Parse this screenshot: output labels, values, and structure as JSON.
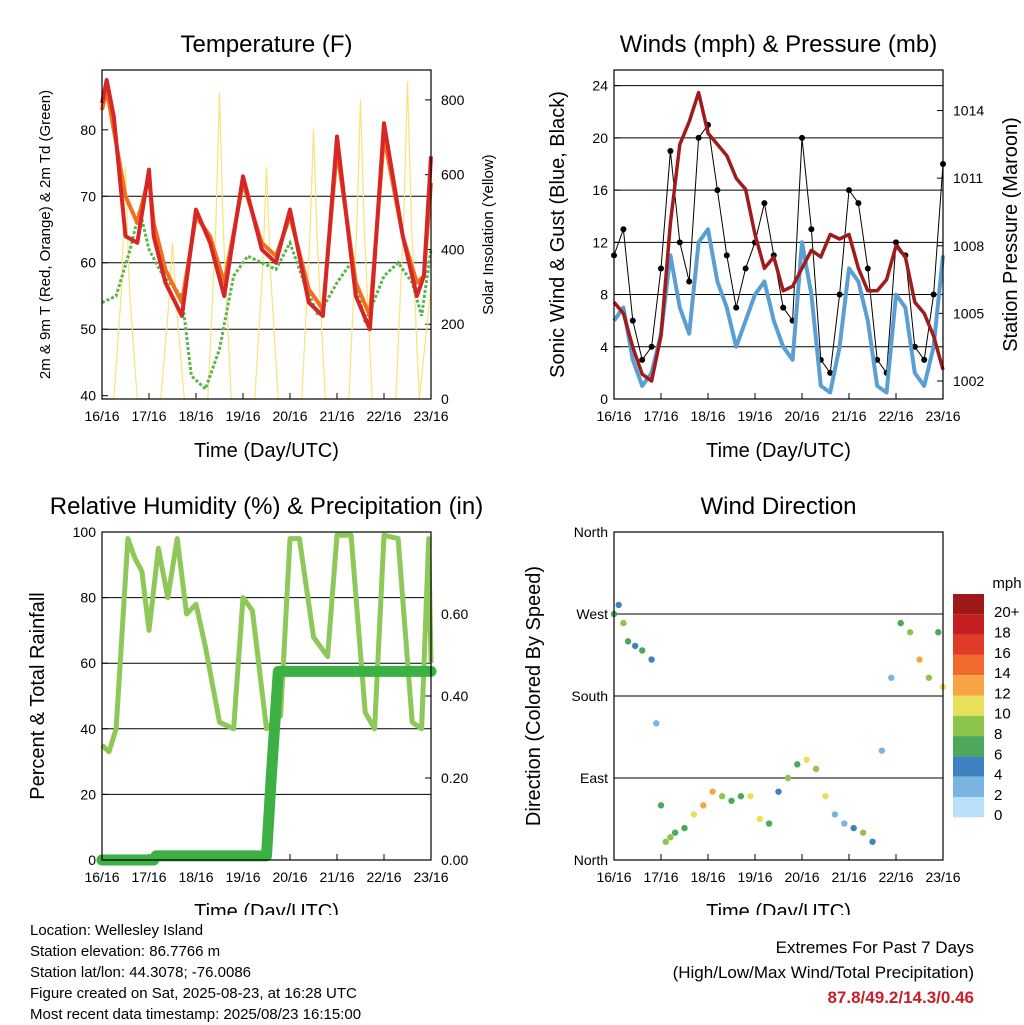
{
  "colors": {
    "temp_2m": "#d62626",
    "temp_9m": "#f07020",
    "dewpoint": "#5ab54a",
    "solar": "#f6e47a",
    "sonic": "#5a9fd4",
    "gust": "#000000",
    "pressure": "#a01c1c",
    "rh": "#8dc859",
    "precip": "#3cb043",
    "extremes": "#c8202a"
  },
  "chart_data": [
    {
      "id": "temperature",
      "type": "line",
      "title": "Temperature (F)",
      "xlabel": "Time (Day/UTC)",
      "ylabel": "2m & 9m T (Red, Orange) & 2m Td (Green)",
      "ylabel_right": "Solar Insolation (Yellow)",
      "x_ticks": [
        "16/16",
        "17/16",
        "18/16",
        "19/16",
        "20/16",
        "21/16",
        "22/16",
        "23/16"
      ],
      "xlim": [
        0,
        7
      ],
      "ylim": [
        39.5,
        89
      ],
      "y_ticks": [
        40,
        50,
        60,
        70,
        80
      ],
      "y2lim": [
        0,
        880
      ],
      "y2_ticks": [
        0,
        200,
        400,
        600,
        800
      ],
      "series": [
        {
          "key": "temp_2m",
          "x": [
            0,
            0.1,
            0.25,
            0.5,
            0.75,
            1.0,
            1.1,
            1.35,
            1.7,
            2.0,
            2.3,
            2.6,
            3.0,
            3.4,
            3.7,
            4.0,
            4.4,
            4.7,
            5.0,
            5.4,
            5.7,
            6.0,
            6.4,
            6.7,
            6.85,
            7.0
          ],
          "y": [
            84,
            87.5,
            82,
            64,
            63,
            74,
            64,
            57,
            52,
            68,
            63,
            55,
            73,
            62,
            60,
            68,
            54,
            52,
            79,
            55,
            50,
            81,
            64,
            55,
            58,
            76
          ]
        },
        {
          "key": "temp_9m",
          "x": [
            0,
            0.1,
            0.25,
            0.5,
            0.75,
            1.0,
            1.1,
            1.35,
            1.7,
            2.0,
            2.3,
            2.6,
            3.0,
            3.4,
            3.7,
            4.0,
            4.4,
            4.7,
            5.0,
            5.4,
            5.7,
            6.0,
            6.4,
            6.7,
            6.85,
            7.0
          ],
          "y": [
            83,
            86,
            80,
            70,
            66,
            73,
            66,
            59,
            54,
            67,
            64,
            57,
            72,
            63,
            61,
            67,
            56,
            53,
            77,
            57,
            52,
            79,
            64,
            57,
            58,
            72
          ]
        },
        {
          "key": "dewpoint",
          "x": [
            0,
            0.3,
            0.6,
            0.8,
            1.0,
            1.3,
            1.7,
            1.9,
            2.2,
            2.5,
            2.8,
            3.1,
            3.4,
            3.7,
            4.0,
            4.3,
            4.6,
            5.0,
            5.3,
            5.6,
            6.0,
            6.3,
            6.6,
            6.8,
            7.0
          ],
          "y": [
            54,
            55,
            62,
            68,
            62,
            58,
            55,
            43,
            41,
            47,
            58,
            61,
            60,
            59,
            63,
            57,
            52,
            57,
            60,
            51,
            58,
            60,
            57,
            52,
            62
          ]
        },
        {
          "key": "solar",
          "x": [
            0,
            0.25,
            0.42,
            0.5,
            0.58,
            0.75,
            1.25,
            1.42,
            1.5,
            1.58,
            1.75,
            2.25,
            2.42,
            2.5,
            2.58,
            2.75,
            3.25,
            3.42,
            3.5,
            3.58,
            3.75,
            4.25,
            4.42,
            4.5,
            4.58,
            4.75,
            5.25,
            5.42,
            5.5,
            5.58,
            5.75,
            6.25,
            6.42,
            6.5,
            6.58,
            6.75,
            7.0
          ],
          "y": [
            0,
            0,
            300,
            620,
            300,
            0,
            0,
            250,
            420,
            250,
            0,
            0,
            450,
            820,
            450,
            0,
            0,
            350,
            620,
            350,
            0,
            0,
            420,
            720,
            420,
            0,
            0,
            450,
            800,
            450,
            0,
            0,
            480,
            850,
            480,
            0,
            300
          ]
        }
      ]
    },
    {
      "id": "winds",
      "type": "scatter",
      "title": "Winds (mph) & Pressure (mb)",
      "xlabel": "Time (Day/UTC)",
      "ylabel": "Sonic Wind & Gust (Blue, Black)",
      "ylabel_right": "Station Pressure (Maroon)",
      "x_ticks": [
        "16/16",
        "17/16",
        "18/16",
        "19/16",
        "20/16",
        "21/16",
        "22/16",
        "23/16"
      ],
      "xlim": [
        0,
        7
      ],
      "ylim": [
        0,
        25.2
      ],
      "y_ticks": [
        0,
        4,
        8,
        12,
        16,
        20,
        24
      ],
      "y2lim": [
        1001.2,
        1015.8
      ],
      "y2_ticks": [
        1002,
        1005,
        1008,
        1011,
        1014
      ],
      "series": [
        {
          "key": "gust",
          "x": [
            0,
            0.2,
            0.4,
            0.6,
            0.8,
            1.0,
            1.2,
            1.4,
            1.6,
            1.8,
            2.0,
            2.2,
            2.4,
            2.6,
            2.8,
            3.0,
            3.2,
            3.4,
            3.6,
            3.8,
            4.0,
            4.2,
            4.4,
            4.6,
            4.8,
            5.0,
            5.2,
            5.4,
            5.6,
            5.8,
            6.0,
            6.2,
            6.4,
            6.6,
            6.8,
            7.0
          ],
          "y": [
            11,
            13,
            6,
            3,
            4,
            10,
            19,
            12,
            9,
            20,
            21,
            16,
            11,
            7,
            10,
            12,
            15,
            11,
            7,
            6,
            20,
            13,
            3,
            2,
            8,
            16,
            15,
            10,
            3,
            2,
            12,
            11,
            4,
            3,
            8,
            18
          ]
        },
        {
          "key": "sonic",
          "x": [
            0,
            0.2,
            0.4,
            0.6,
            0.8,
            1.0,
            1.2,
            1.4,
            1.6,
            1.8,
            2.0,
            2.2,
            2.4,
            2.6,
            2.8,
            3.0,
            3.2,
            3.4,
            3.6,
            3.8,
            4.0,
            4.2,
            4.4,
            4.6,
            4.8,
            5.0,
            5.2,
            5.4,
            5.6,
            5.8,
            6.0,
            6.2,
            6.4,
            6.6,
            6.8,
            7.0
          ],
          "y": [
            6,
            7,
            3,
            1,
            2,
            5,
            11,
            7,
            5,
            12,
            13,
            9,
            7,
            4,
            6,
            8,
            9,
            6,
            4,
            3,
            12,
            8,
            1,
            0.5,
            4,
            10,
            9,
            6,
            1,
            0.5,
            8,
            7,
            2,
            1,
            4,
            11
          ]
        },
        {
          "key": "pressure",
          "x": [
            0,
            0.2,
            0.4,
            0.6,
            0.8,
            1.0,
            1.2,
            1.4,
            1.6,
            1.8,
            2.0,
            2.2,
            2.4,
            2.6,
            2.8,
            3.0,
            3.2,
            3.4,
            3.6,
            3.8,
            4.0,
            4.2,
            4.4,
            4.6,
            4.8,
            5.0,
            5.2,
            5.4,
            5.6,
            5.8,
            6.0,
            6.2,
            6.4,
            6.6,
            6.8,
            7.0
          ],
          "y": [
            1005.5,
            1005,
            1003.5,
            1002.3,
            1002.0,
            1004,
            1009,
            1012.5,
            1013.5,
            1014.8,
            1013,
            1012.5,
            1012,
            1011,
            1010.5,
            1008.5,
            1007,
            1007.5,
            1006,
            1006.2,
            1007.0,
            1007.8,
            1007.5,
            1008.5,
            1008.3,
            1008.5,
            1007,
            1006,
            1006,
            1006.5,
            1008,
            1007.5,
            1005.5,
            1005,
            1004,
            1002.5
          ]
        }
      ]
    },
    {
      "id": "humidity",
      "type": "line",
      "title": "Relative Humidity (%) & Precipitation (in)",
      "xlabel": "Time (Day/UTC)",
      "ylabel": "Percent & Total Rainfall",
      "x_ticks": [
        "16/16",
        "17/16",
        "18/16",
        "19/16",
        "20/16",
        "21/16",
        "22/16",
        "23/16"
      ],
      "xlim": [
        0,
        7
      ],
      "ylim": [
        0,
        100
      ],
      "y_ticks": [
        0,
        20,
        40,
        60,
        80,
        100
      ],
      "y2lim": [
        0,
        0.8
      ],
      "y2_ticks": [
        "0.00",
        "0.20",
        "0.40",
        "0.60"
      ],
      "series": [
        {
          "key": "rh",
          "x": [
            0,
            0.15,
            0.3,
            0.55,
            0.7,
            0.85,
            1.0,
            1.2,
            1.4,
            1.6,
            1.8,
            2.0,
            2.2,
            2.5,
            2.8,
            3.0,
            3.2,
            3.5,
            3.8,
            4.0,
            4.2,
            4.5,
            4.8,
            5.0,
            5.3,
            5.6,
            5.8,
            6.0,
            6.3,
            6.6,
            6.8,
            6.95,
            7.0
          ],
          "y": [
            35,
            33,
            40,
            98,
            92,
            88,
            70,
            95,
            80,
            98,
            75,
            78,
            65,
            42,
            40,
            80,
            76,
            40,
            44,
            98,
            98,
            68,
            62,
            99,
            99,
            45,
            40,
            99,
            98,
            42,
            40,
            98,
            60
          ]
        },
        {
          "key": "precip",
          "x": [
            0,
            1.1,
            1.15,
            3.5,
            3.6,
            3.75,
            7.0
          ],
          "y": [
            0.0,
            0.0,
            0.01,
            0.01,
            0.2,
            0.46,
            0.46
          ]
        }
      ]
    },
    {
      "id": "wind_direction",
      "type": "scatter",
      "title": "Wind Direction",
      "xlabel": "Time (Day/UTC)",
      "ylabel": "Direction (Colored By Speed)",
      "x_ticks": [
        "16/16",
        "17/16",
        "18/16",
        "19/16",
        "20/16",
        "21/16",
        "22/16",
        "23/16"
      ],
      "xlim": [
        0,
        7
      ],
      "ylim": [
        0,
        360
      ],
      "y_ticks": [
        "North",
        "East",
        "South",
        "West",
        "North"
      ],
      "legend_title": "mph",
      "legend_labels": [
        "20+",
        "18",
        "16",
        "14",
        "12",
        "10",
        "8",
        "6",
        "4",
        "2",
        "0"
      ],
      "legend_colors": [
        "#9e1a1a",
        "#c41e20",
        "#e03a28",
        "#f06a2c",
        "#f8a444",
        "#e8e05a",
        "#8cc44c",
        "#4ca85a",
        "#3f82c0",
        "#7ab4e0",
        "#b8e0f8"
      ],
      "series": [
        {
          "key": "direction",
          "x": [
            0,
            0.1,
            0.2,
            0.3,
            0.45,
            0.6,
            0.8,
            0.9,
            1.0,
            1.1,
            1.2,
            1.3,
            1.5,
            1.7,
            1.9,
            2.1,
            2.3,
            2.5,
            2.7,
            2.9,
            3.1,
            3.3,
            3.5,
            3.7,
            3.9,
            4.1,
            4.3,
            4.5,
            4.7,
            4.9,
            5.1,
            5.3,
            5.5,
            5.7,
            5.9,
            6.1,
            6.3,
            6.5,
            6.7,
            6.9,
            7.0
          ],
          "y": [
            270,
            280,
            260,
            240,
            235,
            230,
            220,
            150,
            60,
            20,
            25,
            30,
            35,
            50,
            60,
            75,
            70,
            65,
            70,
            70,
            45,
            40,
            75,
            90,
            105,
            110,
            100,
            70,
            50,
            40,
            35,
            30,
            20,
            120,
            200,
            260,
            250,
            220,
            200,
            250,
            190
          ],
          "speed": [
            5,
            4,
            7,
            6,
            3,
            5,
            4,
            2,
            6,
            8,
            7,
            5,
            6,
            9,
            12,
            11,
            7,
            5,
            6,
            10,
            9,
            5,
            4,
            7,
            5,
            10,
            8,
            9,
            2,
            2,
            4,
            7,
            3,
            2,
            2,
            5,
            8,
            11,
            7,
            5,
            10
          ]
        }
      ]
    }
  ],
  "footer": {
    "location": "Location: Wellesley Island",
    "elevation": "Station elevation: 86.7766 m",
    "latlon": "Station lat/lon: 44.3078; -76.0086",
    "created": "Figure created on Sat, 2025-08-23, at 16:28 UTC",
    "recent": "Most recent data timestamp: 2025/08/23 16:15:00",
    "extremes_title": "Extremes For Past 7 Days",
    "extremes_subtitle": "(High/Low/Max Wind/Total Precipitation)",
    "extremes_values": "87.8/49.2/14.3/0.46"
  }
}
